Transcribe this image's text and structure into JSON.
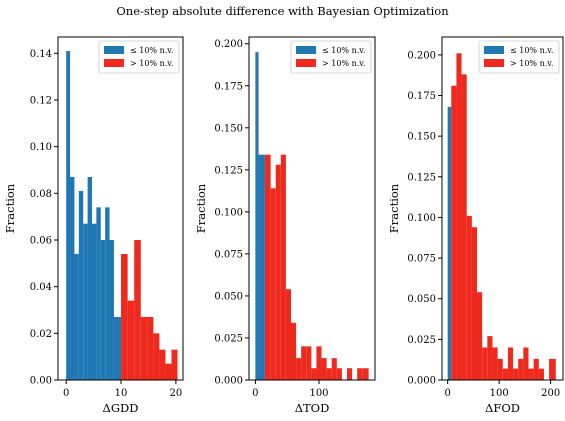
{
  "suptitle": "One-step absolute difference with Bayesian Optimization",
  "colors": {
    "low": "#1f77b4",
    "high": "#ee2a1e",
    "axis": "#000000"
  },
  "chart_data": [
    {
      "type": "bar",
      "xlabel": "ΔGDD",
      "ylabel": "Fraction",
      "xlim": [
        -1.5,
        21.3
      ],
      "ylim": [
        0,
        0.147
      ],
      "xticks": [
        0,
        10,
        20
      ],
      "yticks": [
        0.0,
        0.02,
        0.04,
        0.06,
        0.08,
        0.1,
        0.12,
        0.14
      ],
      "ytick_decimals": 2,
      "legend": {
        "position": "top-right",
        "entries": [
          "≤ 10% n.v.",
          "> 10% n.v."
        ]
      },
      "series": [
        {
          "name": "≤ 10% n.v.",
          "bins": [
            [
              0,
              0.7,
              0.141
            ],
            [
              0.7,
              1.5,
              0.087
            ],
            [
              1.5,
              2.3,
              0.054
            ],
            [
              2.3,
              3.1,
              0.081
            ],
            [
              3.1,
              3.9,
              0.067
            ],
            [
              3.9,
              4.7,
              0.087
            ],
            [
              4.7,
              5.5,
              0.067
            ],
            [
              5.5,
              6.3,
              0.074
            ],
            [
              6.3,
              7.1,
              0.06
            ],
            [
              7.1,
              7.9,
              0.074
            ],
            [
              7.9,
              8.7,
              0.06
            ],
            [
              8.7,
              10.0,
              0.027
            ]
          ]
        },
        {
          "name": "> 10% n.v.",
          "bins": [
            [
              10.0,
              11.2,
              0.054
            ],
            [
              11.2,
              12.4,
              0.034
            ],
            [
              12.4,
              13.6,
              0.06
            ],
            [
              13.6,
              14.8,
              0.027
            ],
            [
              14.8,
              15.9,
              0.027
            ],
            [
              15.9,
              17.0,
              0.02
            ],
            [
              17.0,
              18.1,
              0.013
            ],
            [
              18.1,
              19.2,
              0.007
            ],
            [
              19.2,
              20.3,
              0.013
            ]
          ]
        }
      ]
    },
    {
      "type": "bar",
      "xlabel": "ΔTOD",
      "ylabel": "Fraction",
      "xlim": [
        -10,
        188
      ],
      "ylim": [
        0,
        0.204
      ],
      "xticks": [
        0,
        100
      ],
      "yticks": [
        0.0,
        0.025,
        0.05,
        0.075,
        0.1,
        0.125,
        0.15,
        0.175,
        0.2
      ],
      "ytick_decimals": 3,
      "legend": {
        "position": "top-right",
        "entries": [
          "≤ 10% n.v.",
          "> 10% n.v."
        ]
      },
      "series": [
        {
          "name": "≤ 10% n.v.",
          "bins": [
            [
              0,
              5,
              0.195
            ],
            [
              5,
              15,
              0.134
            ]
          ]
        },
        {
          "name": "> 10% n.v.",
          "bins": [
            [
              15,
              24,
              0.134
            ],
            [
              24,
              32,
              0.114
            ],
            [
              32,
              40,
              0.128
            ],
            [
              40,
              48,
              0.134
            ],
            [
              48,
              56,
              0.054
            ],
            [
              56,
              64,
              0.034
            ],
            [
              64,
              72,
              0.013
            ],
            [
              72,
              80,
              0.02
            ],
            [
              80,
              88,
              0.02
            ],
            [
              88,
              96,
              0.007
            ],
            [
              96,
              104,
              0.02
            ],
            [
              104,
              112,
              0.013
            ],
            [
              112,
              120,
              0.007
            ],
            [
              120,
              128,
              0.013
            ],
            [
              128,
              136,
              0.007
            ],
            [
              136,
              144,
              0.0
            ],
            [
              144,
              152,
              0.007
            ],
            [
              152,
              160,
              0.0
            ],
            [
              160,
              168,
              0.007
            ],
            [
              168,
              178,
              0.007
            ]
          ]
        }
      ]
    },
    {
      "type": "bar",
      "xlabel": "ΔFOD",
      "ylabel": "Fraction",
      "xlim": [
        -11,
        224
      ],
      "ylim": [
        0,
        0.211
      ],
      "xticks": [
        0,
        100,
        200
      ],
      "yticks": [
        0.0,
        0.025,
        0.05,
        0.075,
        0.1,
        0.125,
        0.15,
        0.175,
        0.2
      ],
      "ytick_decimals": 3,
      "legend": {
        "position": "top-right",
        "entries": [
          "≤ 10% n.v.",
          "> 10% n.v."
        ]
      },
      "series": [
        {
          "name": "≤ 10% n.v.",
          "bins": [
            [
              0,
              7,
              0.168
            ]
          ]
        },
        {
          "name": "> 10% n.v.",
          "bins": [
            [
              7,
              17,
              0.181
            ],
            [
              17,
              27,
              0.201
            ],
            [
              27,
              37,
              0.188
            ],
            [
              37,
              47,
              0.101
            ],
            [
              47,
              57,
              0.094
            ],
            [
              57,
              67,
              0.054
            ],
            [
              67,
              77,
              0.02
            ],
            [
              77,
              87,
              0.027
            ],
            [
              87,
              97,
              0.02
            ],
            [
              97,
              107,
              0.013
            ],
            [
              107,
              117,
              0.007
            ],
            [
              117,
              127,
              0.02
            ],
            [
              127,
              137,
              0.007
            ],
            [
              137,
              147,
              0.013
            ],
            [
              147,
              157,
              0.02
            ],
            [
              157,
              167,
              0.007
            ],
            [
              167,
              177,
              0.013
            ],
            [
              177,
              187,
              0.007
            ],
            [
              187,
              197,
              0.0
            ],
            [
              197,
              210,
              0.013
            ]
          ]
        }
      ]
    }
  ]
}
